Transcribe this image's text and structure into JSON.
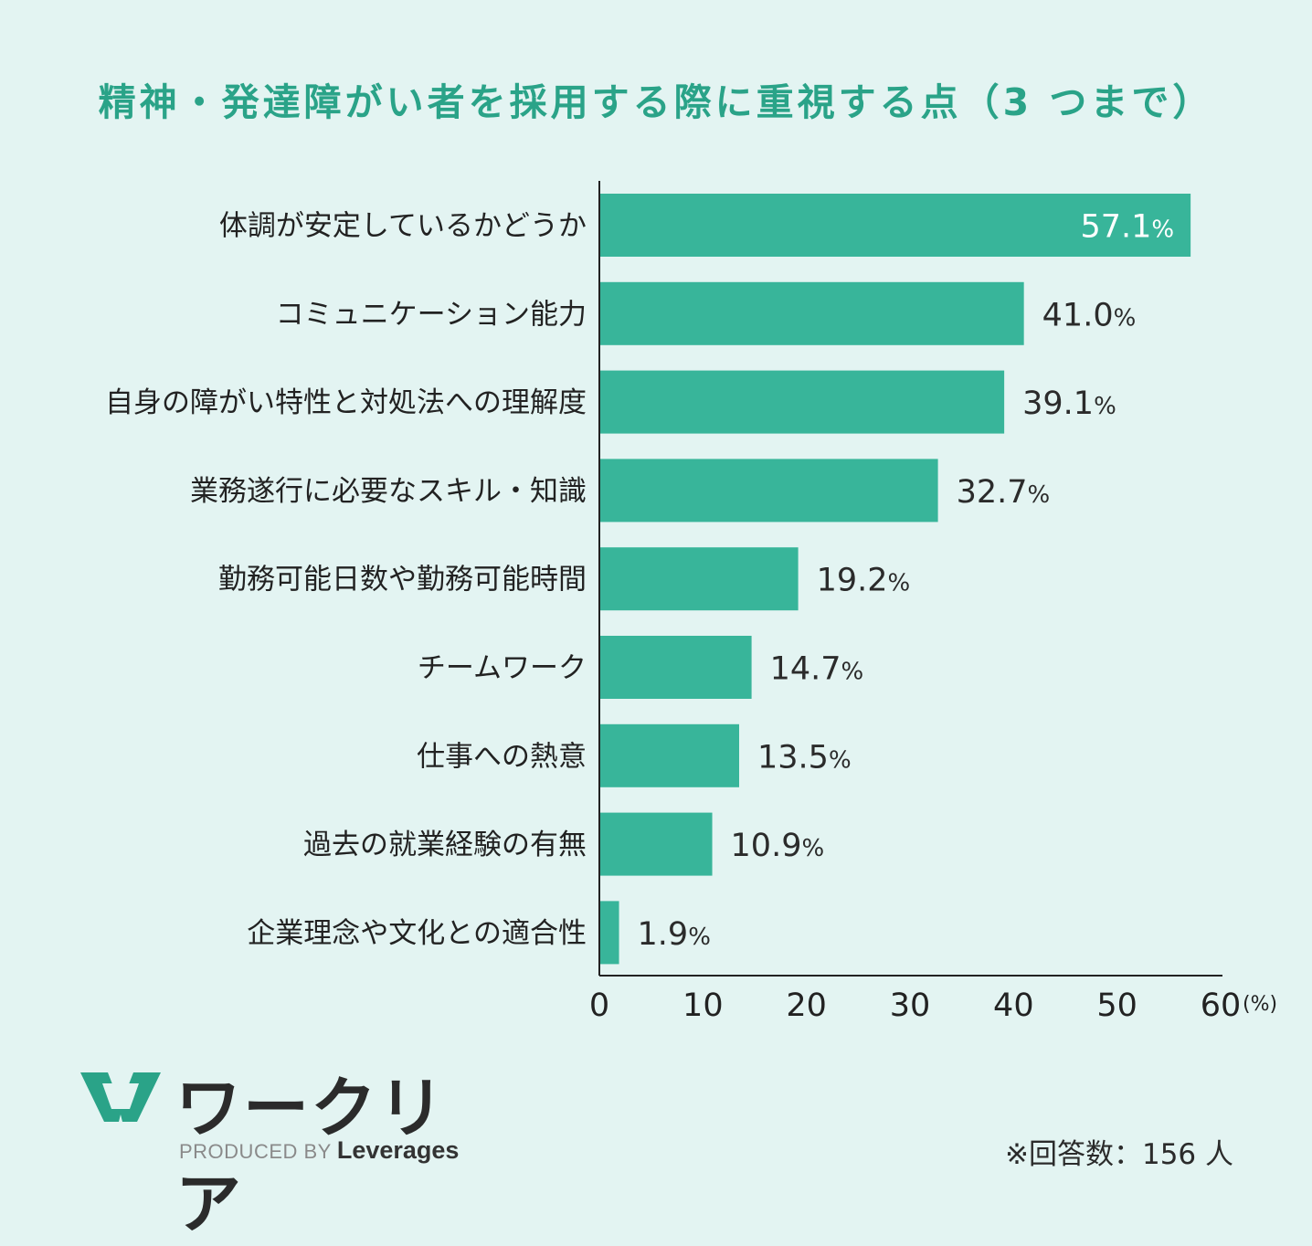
{
  "title": "精神・発達障がい者を採用する際に重視する点（3 つまで）",
  "chart_data": {
    "type": "bar",
    "orientation": "horizontal",
    "categories": [
      "体調が安定しているかどうか",
      "コミュニケーション能力",
      "自身の障がい特性と対処法への理解度",
      "業務遂行に必要なスキル・知識",
      "勤務可能日数や勤務可能時間",
      "チームワーク",
      "仕事への熱意",
      "過去の就業経験の有無",
      "企業理念や文化との適合性"
    ],
    "values": [
      57.1,
      41.0,
      39.1,
      32.7,
      19.2,
      14.7,
      13.5,
      10.9,
      1.9
    ],
    "value_labels": [
      "57.1",
      "41.0",
      "39.1",
      "32.7",
      "19.2",
      "14.7",
      "13.5",
      "10.9",
      "1.9"
    ],
    "value_suffix": "%",
    "xlim": [
      0,
      60
    ],
    "xticks": [
      0,
      10,
      20,
      30,
      40,
      50,
      60
    ],
    "xunit": "(%)",
    "bar_color": "#38b59a",
    "inside_label_color": "#ffffff",
    "outside_label_color": "#2b2b2b",
    "grid": false
  },
  "logo": {
    "name": "ワークリア",
    "produced_by": "PRODUCED BY",
    "brand": "Leverages",
    "mark_color": "#2aa388"
  },
  "note": "※回答数：156 人"
}
